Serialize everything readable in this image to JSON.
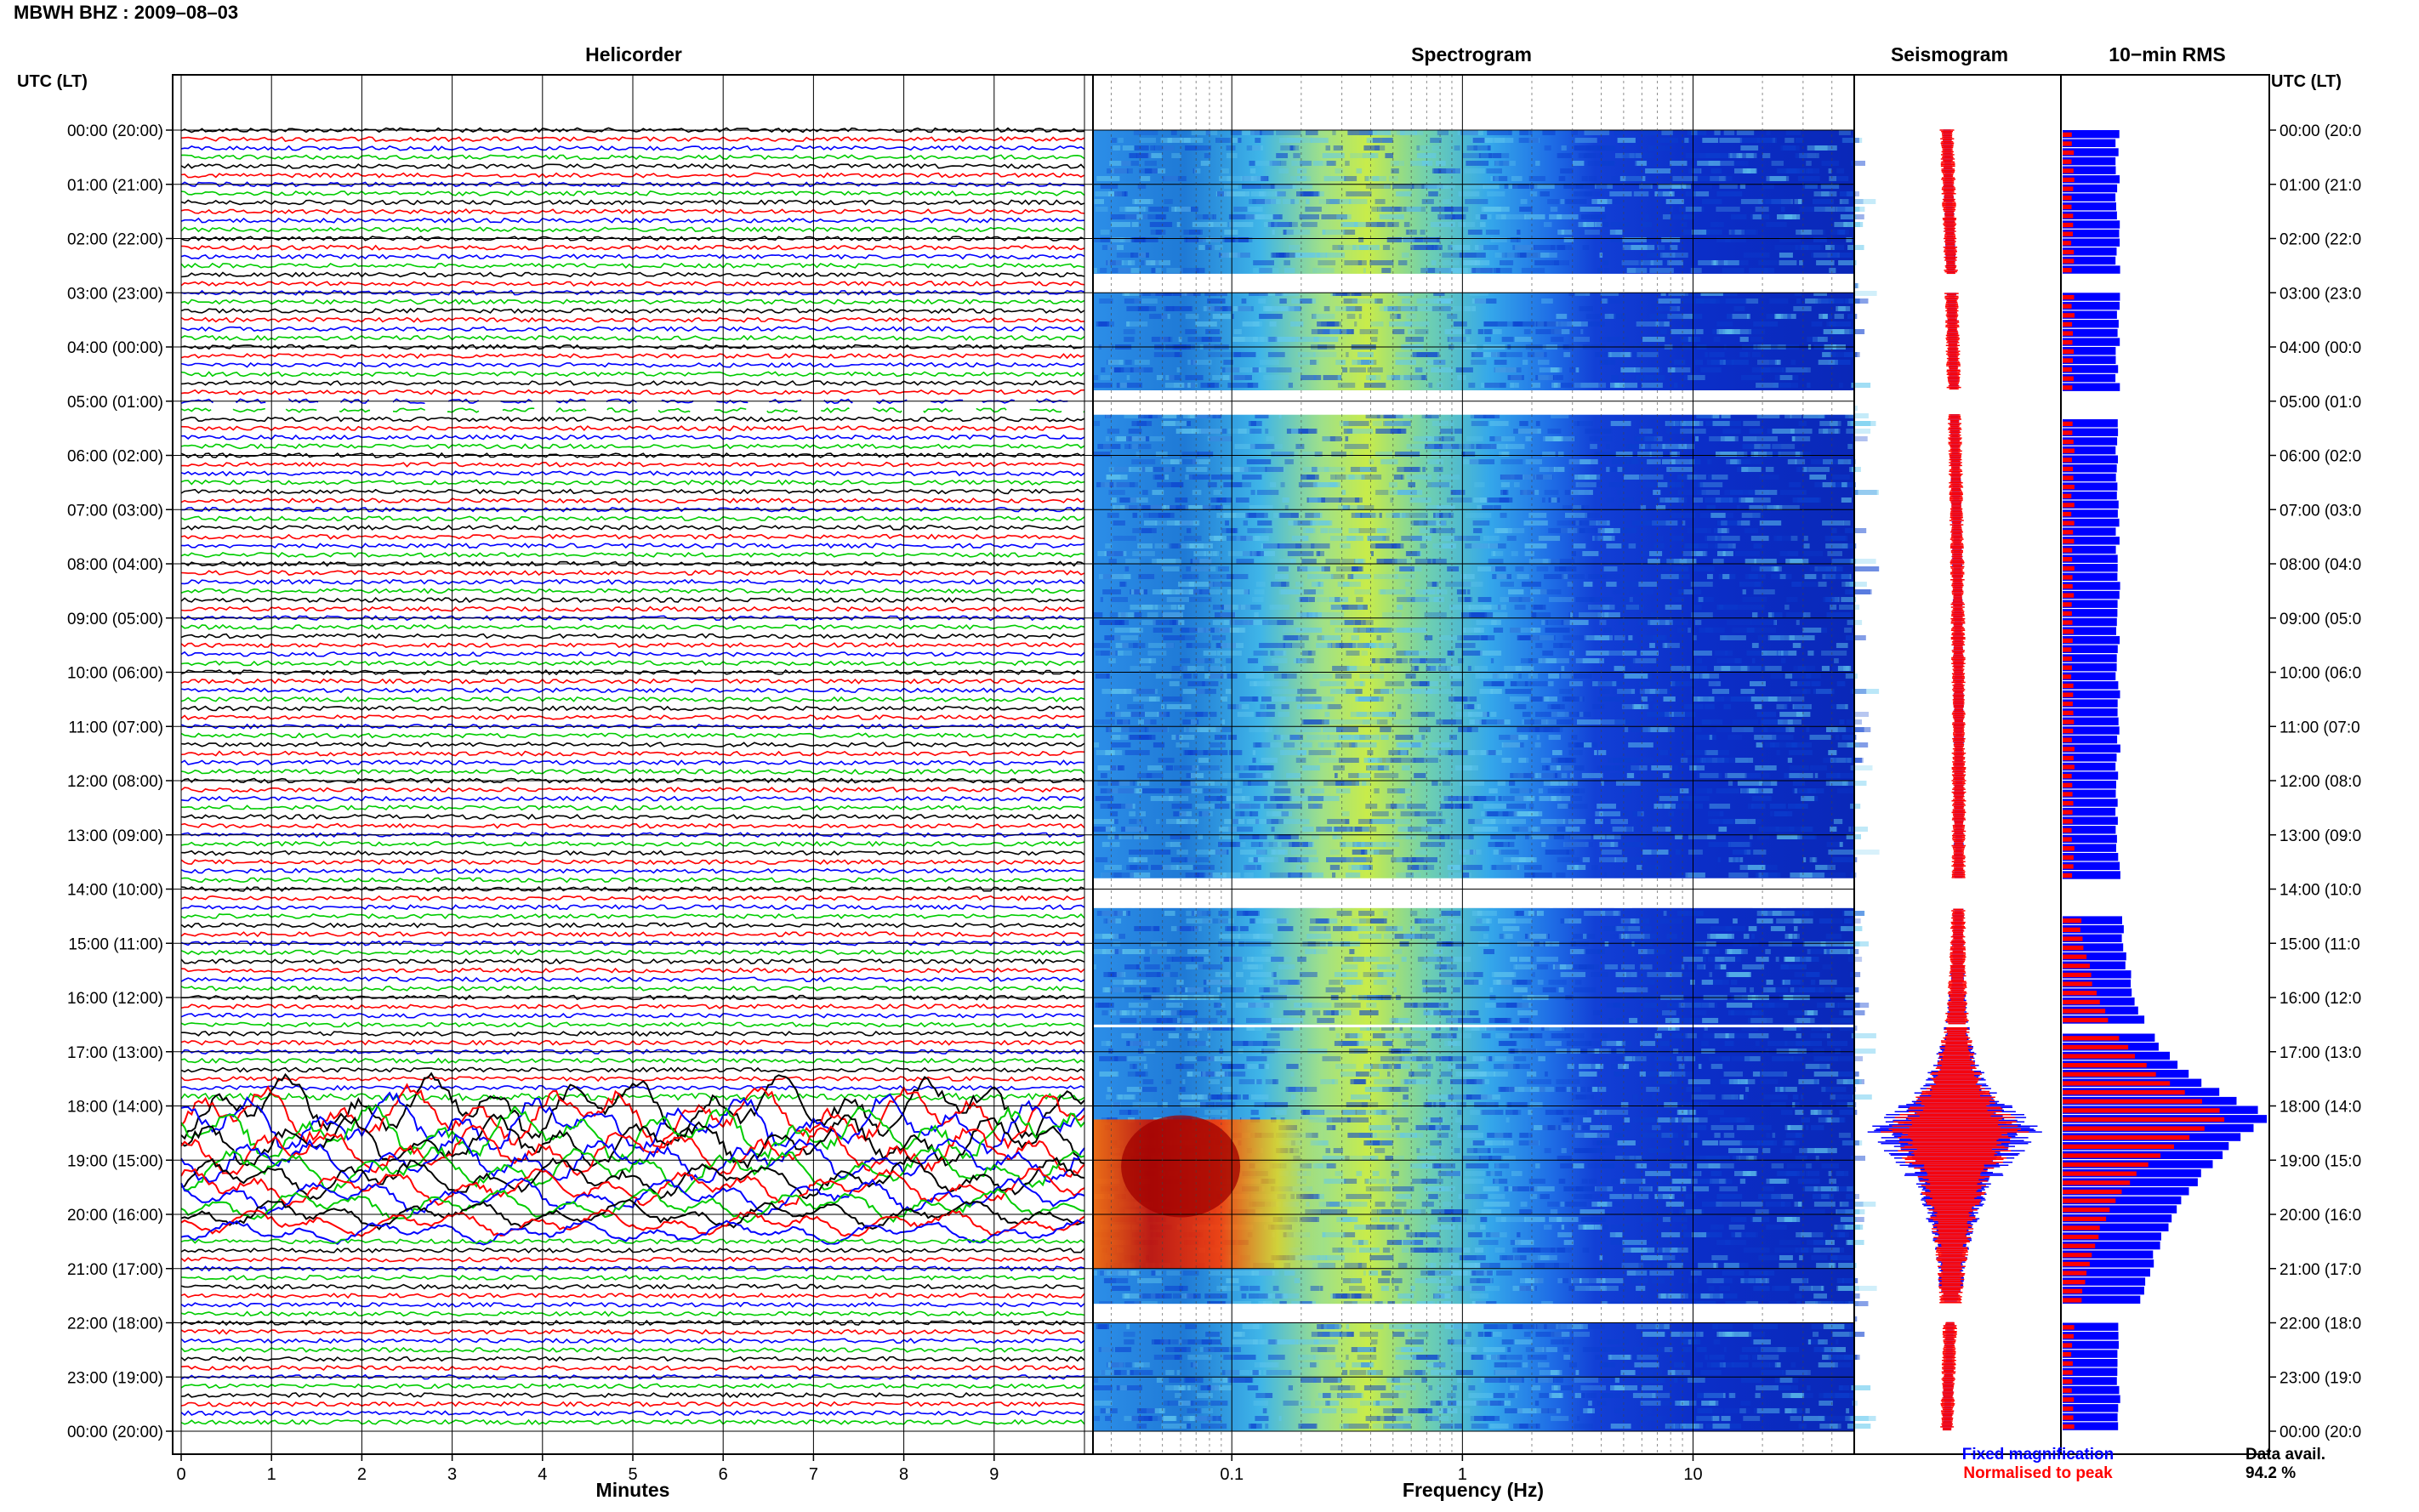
{
  "title": "MBWH BHZ : 2009–08–03",
  "colors": {
    "trace_cycle": [
      "#000000",
      "#ff0000",
      "#0000ff",
      "#00cc00"
    ],
    "fixed": "#0000ff",
    "normalised": "#ff0000"
  },
  "chart_data": [
    {
      "type": "line",
      "title": "Helicorder",
      "xlabel": "Minutes",
      "ylabel": "UTC (LT)",
      "xlim": [
        0,
        10
      ],
      "xticks": [
        "0",
        "1",
        "2",
        "3",
        "4",
        "5",
        "6",
        "7",
        "8",
        "9"
      ],
      "yticks": [
        "00:00 (20:00)",
        "01:00 (21:00)",
        "02:00 (22:00)",
        "03:00 (23:00)",
        "04:00 (00:00)",
        "05:00 (01:00)",
        "06:00 (02:00)",
        "07:00 (03:00)",
        "08:00 (04:00)",
        "09:00 (05:00)",
        "10:00 (06:00)",
        "11:00 (07:00)",
        "12:00 (08:00)",
        "13:00 (09:00)",
        "14:00 (10:00)",
        "15:00 (11:00)",
        "16:00 (12:00)",
        "17:00 (13:00)",
        "18:00 (14:00)",
        "19:00 (15:00)",
        "20:00 (16:00)",
        "21:00 (17:00)",
        "22:00 (18:00)",
        "23:00 (19:00)",
        "00:00 (20:00)"
      ],
      "traces_per_hour": 6,
      "event_window_hours": [
        18.0,
        20.5
      ],
      "grid": true
    },
    {
      "type": "heatmap",
      "title": "Spectrogram",
      "xlabel": "Frequency (Hz)",
      "xscale": "log",
      "xlim": [
        0.025,
        50
      ],
      "xticks": [
        "0.1",
        "1",
        "10"
      ],
      "gap_hours": [
        [
          2.65,
          3.0
        ],
        [
          4.8,
          5.25
        ],
        [
          13.8,
          14.35
        ],
        [
          16.5,
          16.55
        ],
        [
          21.65,
          22.0
        ]
      ],
      "event": {
        "start_hour": 18.25,
        "end_hour": 21.0,
        "peak_hz": 0.06
      }
    },
    {
      "type": "line",
      "title": "Seismogram",
      "series": [
        {
          "name": "Fixed magnification",
          "color": "#0000ff"
        },
        {
          "name": "Normalised to peak",
          "color": "#ff0000"
        }
      ],
      "event_peak_hour": 18.45
    },
    {
      "type": "bar",
      "title": "10−min RMS",
      "ylabel": "UTC (LT)",
      "yticks": [
        "00:00 (20:0",
        "01:00 (21:0",
        "02:00 (22:0",
        "03:00 (23:0",
        "04:00 (00:0",
        "05:00 (01:0",
        "06:00 (02:0",
        "07:00 (03:0",
        "08:00 (04:0",
        "09:00 (05:0",
        "10:00 (06:0",
        "11:00 (07:0",
        "12:00 (08:0",
        "13:00 (09:0",
        "14:00 (10:0",
        "15:00 (11:0",
        "16:00 (12:0",
        "17:00 (13:0",
        "18:00 (14:0",
        "19:00 (15:0",
        "20:00 (16:0",
        "21:00 (17:0",
        "22:00 (18:0",
        "23:00 (19:0",
        "00:00 (20:0"
      ],
      "interval_minutes": 10,
      "peak_hour": 18.1
    }
  ],
  "footer": {
    "fixed_label": "Fixed magnification",
    "normalised_label": "Normalised to peak",
    "avail_label": "Data avail.",
    "avail_value": "94.2 %"
  }
}
